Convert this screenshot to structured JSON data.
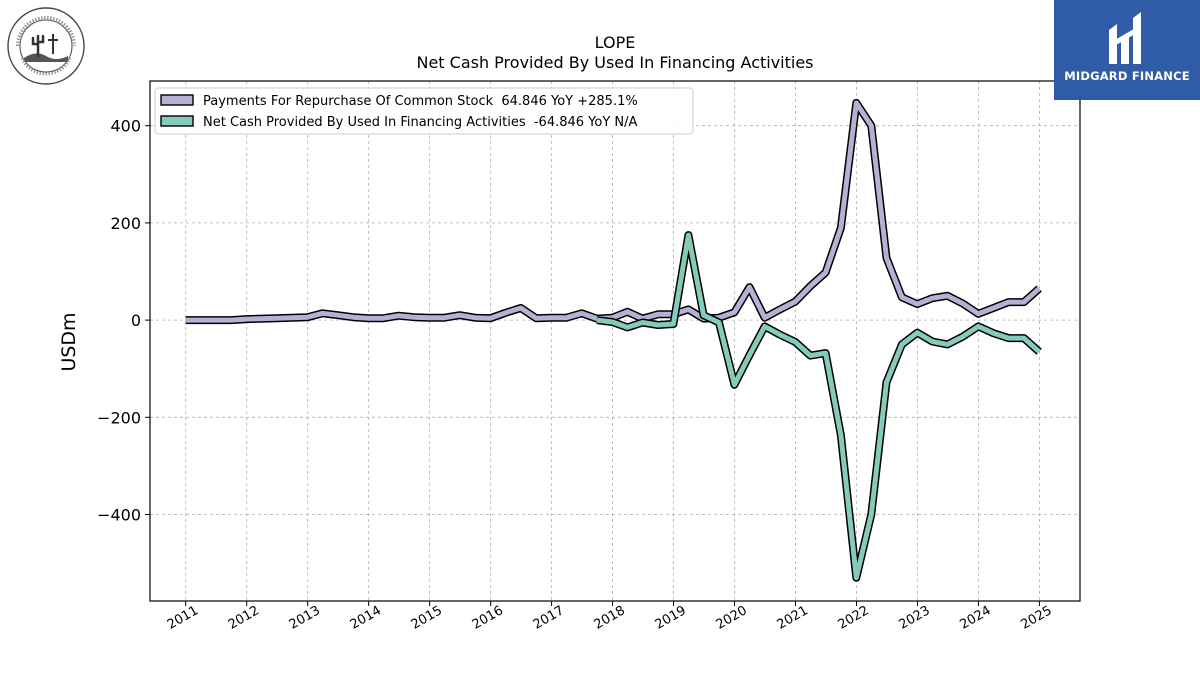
{
  "logo_left": {
    "name": "grand-canyon-university-seal",
    "text_top": "GRAND CANYON UNIVERSITY",
    "text_bottom": "ARIZONA 1949"
  },
  "logo_right": {
    "name": "midgard-finance-logo",
    "text": "MIDGARD FINANCE",
    "background": "#2f5ba7"
  },
  "chart_data": {
    "type": "line",
    "title": "LOPE",
    "subtitle": "Net Cash Provided By Used In Financing Activities",
    "xlabel": "",
    "ylabel": "USDm",
    "x_ticks": [
      "2011",
      "2012",
      "2013",
      "2014",
      "2015",
      "2016",
      "2017",
      "2018",
      "2019",
      "2020",
      "2021",
      "2022",
      "2023",
      "2024",
      "2025"
    ],
    "y_ticks": [
      400,
      200,
      0,
      -200,
      -400
    ],
    "y_tick_labels": [
      "400",
      "200",
      "0",
      "−200",
      "−400"
    ],
    "xlim": [
      "2010-06-01",
      "2025-09-01"
    ],
    "ylim": [
      -578,
      492
    ],
    "grid": true,
    "legend_position": "top-left",
    "series": [
      {
        "name": "Payments For Repurchase Of Common Stock",
        "legend_label": "Payments For Repurchase Of Common Stock  64.846 YoY +285.1%",
        "color": "#b4b2d4",
        "points": [
          [
            "2010-12-31",
            0
          ],
          [
            "2011-03-31",
            0
          ],
          [
            "2011-06-30",
            0
          ],
          [
            "2011-09-30",
            0
          ],
          [
            "2011-12-31",
            2
          ],
          [
            "2012-06-30",
            4
          ],
          [
            "2012-12-31",
            6
          ],
          [
            "2013-03-31",
            14
          ],
          [
            "2013-06-30",
            10
          ],
          [
            "2013-09-30",
            6
          ],
          [
            "2013-12-31",
            4
          ],
          [
            "2014-03-31",
            4
          ],
          [
            "2014-06-30",
            9
          ],
          [
            "2014-09-30",
            6
          ],
          [
            "2014-12-31",
            5
          ],
          [
            "2015-03-31",
            5
          ],
          [
            "2015-06-30",
            10
          ],
          [
            "2015-09-30",
            5
          ],
          [
            "2015-12-31",
            4
          ],
          [
            "2016-03-31",
            15
          ],
          [
            "2016-06-30",
            25
          ],
          [
            "2016-09-30",
            4
          ],
          [
            "2016-12-31",
            5
          ],
          [
            "2017-03-31",
            5
          ],
          [
            "2017-06-30",
            14
          ],
          [
            "2017-09-30",
            3
          ],
          [
            "2017-12-31",
            5
          ],
          [
            "2018-03-31",
            17
          ],
          [
            "2018-06-30",
            3
          ],
          [
            "2018-09-30",
            12
          ],
          [
            "2018-12-31",
            12
          ],
          [
            "2019-03-31",
            22
          ],
          [
            "2019-06-30",
            3
          ],
          [
            "2019-09-30",
            5
          ],
          [
            "2019-12-31",
            16
          ],
          [
            "2020-03-31",
            68
          ],
          [
            "2020-06-30",
            5
          ],
          [
            "2020-09-30",
            22
          ],
          [
            "2020-12-31",
            38
          ],
          [
            "2021-03-31",
            70
          ],
          [
            "2021-06-30",
            98
          ],
          [
            "2021-09-30",
            190
          ],
          [
            "2021-12-31",
            447
          ],
          [
            "2022-03-31",
            400
          ],
          [
            "2022-06-30",
            128
          ],
          [
            "2022-09-30",
            47
          ],
          [
            "2022-12-31",
            33
          ],
          [
            "2023-03-31",
            45
          ],
          [
            "2023-06-30",
            50
          ],
          [
            "2023-09-30",
            34
          ],
          [
            "2023-12-31",
            13
          ],
          [
            "2024-03-31",
            25
          ],
          [
            "2024-06-30",
            37
          ],
          [
            "2024-09-30",
            37
          ],
          [
            "2024-12-31",
            65
          ]
        ]
      },
      {
        "name": "Net Cash Provided By Used In Financing Activities",
        "legend_label": "Net Cash Provided By Used In Financing Activities  -64.846 YoY N/A",
        "color": "#84cbbb",
        "points": [
          [
            "2017-09-30",
            0
          ],
          [
            "2017-12-31",
            -4
          ],
          [
            "2018-03-31",
            -15
          ],
          [
            "2018-06-30",
            -5
          ],
          [
            "2018-09-30",
            -10
          ],
          [
            "2018-12-31",
            -8
          ],
          [
            "2019-03-31",
            175
          ],
          [
            "2019-06-30",
            10
          ],
          [
            "2019-09-30",
            -5
          ],
          [
            "2019-12-31",
            -133
          ],
          [
            "2020-03-31",
            -72
          ],
          [
            "2020-06-30",
            -13
          ],
          [
            "2020-09-30",
            -30
          ],
          [
            "2020-12-31",
            -45
          ],
          [
            "2021-03-31",
            -73
          ],
          [
            "2021-06-30",
            -68
          ],
          [
            "2021-09-30",
            -237
          ],
          [
            "2021-12-31",
            -530
          ],
          [
            "2022-03-31",
            -400
          ],
          [
            "2022-06-30",
            -128
          ],
          [
            "2022-09-30",
            -50
          ],
          [
            "2022-12-31",
            -26
          ],
          [
            "2023-03-31",
            -44
          ],
          [
            "2023-06-30",
            -50
          ],
          [
            "2023-09-30",
            -34
          ],
          [
            "2023-12-31",
            -13
          ],
          [
            "2024-03-31",
            -27
          ],
          [
            "2024-06-30",
            -37
          ],
          [
            "2024-09-30",
            -37
          ],
          [
            "2024-12-31",
            -65
          ]
        ]
      }
    ]
  }
}
